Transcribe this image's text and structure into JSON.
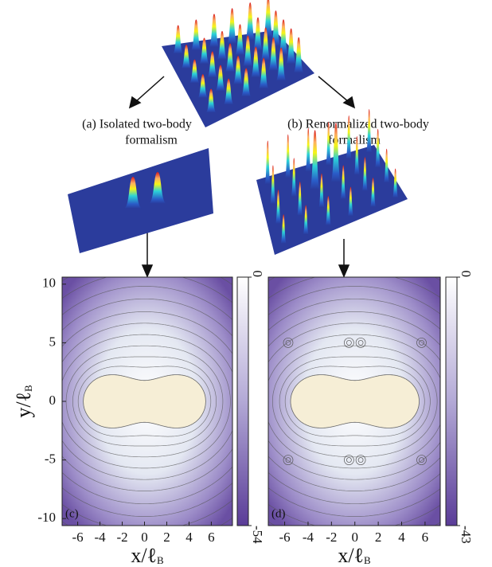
{
  "figure": {
    "caption_a": [
      "(a) Isolated two-body",
      "formalism"
    ],
    "caption_b": [
      "(b) Renormalized two-body",
      "formalism"
    ]
  },
  "chart_data": [
    {
      "type": "contour",
      "panel_label": "(c)",
      "xlim": [
        -7.4,
        7.9
      ],
      "ylim": [
        -10.6,
        10.6
      ],
      "xticks": [
        -6,
        -4,
        -2,
        0,
        2,
        4,
        6
      ],
      "yticks": [
        -10,
        -5,
        0,
        5,
        10
      ],
      "xlabel": "x/ℓ",
      "xlabel_sub": "B",
      "ylabel": "y/ℓ",
      "ylabel_sub": "B",
      "clim": [
        -54,
        0
      ],
      "cticks": [
        -54,
        0
      ]
    },
    {
      "type": "contour",
      "panel_label": "(d)",
      "xlim": [
        -7.4,
        7.3
      ],
      "ylim": [
        -10.6,
        10.6
      ],
      "xticks": [
        -6,
        -4,
        -2,
        0,
        2,
        4,
        6
      ],
      "xlabel": "x/ℓ",
      "xlabel_sub": "B",
      "clim": [
        -43,
        0
      ],
      "cticks": [
        -43,
        0
      ]
    }
  ]
}
